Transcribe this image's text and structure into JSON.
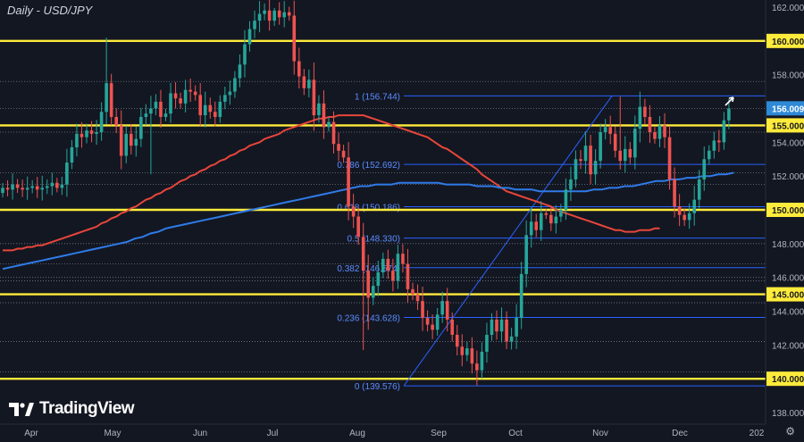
{
  "chart_data": {
    "type": "candlestick",
    "title": "Daily - USD/JPY",
    "brand": "TradingView",
    "ylim": [
      137.3,
      162.6
    ],
    "y_ticks": [
      138,
      140,
      142,
      144,
      146,
      148,
      150,
      152,
      154,
      156,
      158,
      160,
      162
    ],
    "x_ticks": [
      "Apr",
      "May",
      "Jun",
      "Jul",
      "Aug",
      "Sep",
      "Oct",
      "Nov",
      "Dec",
      "202"
    ],
    "current_price": "156.009",
    "colors": {
      "background": "#131722",
      "up": "#26a69a",
      "down": "#ef5350",
      "sr_line": "#ffeb3b",
      "ma_fast": "#e8463a",
      "ma_slow": "#2f7be8",
      "fib": "#2962ff",
      "current_price": "#2e89d6"
    },
    "support_resistance": [
      {
        "value": 160.0,
        "label": "160.000"
      },
      {
        "value": 155.0,
        "label": "155.000"
      },
      {
        "value": 150.0,
        "label": "150.000"
      },
      {
        "value": 145.0,
        "label": "145.000"
      },
      {
        "value": 140.0,
        "label": "140.000"
      }
    ],
    "dotted_levels": [
      157.6,
      156.0,
      154.6,
      152.2,
      151.5,
      148.0,
      146.8,
      146.0,
      145.8,
      144.5,
      142.2,
      140.4
    ],
    "fibonacci": [
      {
        "ratio": "1",
        "price": "156.744",
        "value": 156.744
      },
      {
        "ratio": "0.786",
        "price": "152.692",
        "value": 152.692
      },
      {
        "ratio": "0.618",
        "price": "150.186",
        "value": 150.186
      },
      {
        "ratio": "0.5",
        "price": "148.330",
        "value": 148.33
      },
      {
        "ratio": "0.382",
        "price": "146.574",
        "value": 146.574
      },
      {
        "ratio": "0.236",
        "price": "143.628",
        "value": 143.628
      },
      {
        "ratio": "0",
        "price": "139.576",
        "value": 139.576
      }
    ],
    "series": [
      {
        "kind": "ohlc",
        "x_start": 0,
        "x_step": 1,
        "closes": [
          151.3,
          151.2,
          151.5,
          151.3,
          151.2,
          151.3,
          151.4,
          151.2,
          151.3,
          151.4,
          151.6,
          151.3,
          151.5,
          152.8,
          153.7,
          154.5,
          154.3,
          154.7,
          154.5,
          154.6,
          155.8,
          157.5,
          155.5,
          155.0,
          153.2,
          154.5,
          153.8,
          154.2,
          155.5,
          155.7,
          156.0,
          156.4,
          155.5,
          155.7,
          156.9,
          156.6,
          156.3,
          157.1,
          157.0,
          156.8,
          155.6,
          156.2,
          155.8,
          155.5,
          156.4,
          156.8,
          157.0,
          157.8,
          158.6,
          159.8,
          160.7,
          161.2,
          161.6,
          161.8,
          161.2,
          161.8,
          161.4,
          161.7,
          161.5,
          158.8,
          157.9,
          157.2,
          157.7,
          155.6,
          156.3,
          154.9,
          155.2,
          153.9,
          153.5,
          153.1,
          150.2,
          149.6,
          148.4,
          146.4,
          144.8,
          145.5,
          146.3,
          147.1,
          146.4,
          145.8,
          147.4,
          146.8,
          145.3,
          145.0,
          144.6,
          143.6,
          143.2,
          142.9,
          143.8,
          144.6,
          143.5,
          142.6,
          141.9,
          141.4,
          141.8,
          140.9,
          140.5,
          141.6,
          142.6,
          143.5,
          142.8,
          143.5,
          142.2,
          142.5,
          143.6,
          146.2,
          148.5,
          149.3,
          148.8,
          149.8,
          149.7,
          149.2,
          149.6,
          150.0,
          151.2,
          151.8,
          153.0,
          152.9,
          153.8,
          152.1,
          152.9,
          154.6,
          154.9,
          154.5,
          153.5,
          152.9,
          153.6,
          153.1,
          154.8,
          156.1,
          155.5,
          154.6,
          154.2,
          155.0,
          154.3,
          151.8,
          150.2,
          149.7,
          149.4,
          149.8,
          150.6,
          151.8,
          153.0,
          153.5,
          154.1,
          154.0,
          155.3,
          156.0
        ]
      }
    ],
    "ma_fast_values": [
      147.6,
      147.6,
      147.6,
      147.7,
      147.7,
      147.8,
      147.8,
      147.9,
      147.9,
      148.0,
      148.1,
      148.2,
      148.3,
      148.4,
      148.5,
      148.6,
      148.7,
      148.8,
      148.9,
      149.0,
      149.2,
      149.3,
      149.5,
      149.6,
      149.8,
      149.9,
      150.1,
      150.2,
      150.4,
      150.6,
      150.7,
      150.9,
      151.0,
      151.2,
      151.3,
      151.5,
      151.7,
      151.8,
      152.0,
      152.1,
      152.3,
      152.4,
      152.6,
      152.7,
      152.9,
      153.0,
      153.2,
      153.3,
      153.5,
      153.6,
      153.8,
      153.9,
      154.0,
      154.2,
      154.3,
      154.4,
      154.5,
      154.7,
      154.8,
      154.9,
      155.0,
      155.1,
      155.2,
      155.3,
      155.4,
      155.4,
      155.5,
      155.5,
      155.6,
      155.6,
      155.6,
      155.6,
      155.6,
      155.6,
      155.5,
      155.4,
      155.3,
      155.2,
      155.1,
      155.0,
      154.9,
      154.8,
      154.7,
      154.6,
      154.5,
      154.4,
      154.3,
      154.1,
      153.9,
      153.7,
      153.6,
      153.4,
      153.2,
      153.0,
      152.8,
      152.6,
      152.4,
      152.1,
      151.9,
      151.7,
      151.5,
      151.3,
      151.1,
      151.0,
      150.9,
      150.8,
      150.7,
      150.6,
      150.5,
      150.4,
      150.3,
      150.2,
      150.0,
      149.9,
      149.8,
      149.7,
      149.6,
      149.5,
      149.4,
      149.3,
      149.2,
      149.1,
      149.0,
      148.9,
      148.8,
      148.8,
      148.7,
      148.7,
      148.7,
      148.8,
      148.8,
      148.8,
      148.9,
      148.9
    ],
    "ma_slow_values": [
      146.5,
      146.6,
      146.7,
      146.8,
      146.9,
      147.0,
      147.1,
      147.2,
      147.3,
      147.4,
      147.5,
      147.6,
      147.7,
      147.8,
      147.9,
      148.0,
      148.1,
      148.3,
      148.4,
      148.6,
      148.7,
      148.9,
      149.0,
      149.1,
      149.2,
      149.3,
      149.4,
      149.5,
      149.6,
      149.7,
      149.8,
      149.9,
      150.0,
      150.1,
      150.2,
      150.3,
      150.4,
      150.5,
      150.6,
      150.7,
      150.8,
      150.9,
      151.0,
      151.1,
      151.2,
      151.3,
      151.4,
      151.4,
      151.5,
      151.5,
      151.5,
      151.6,
      151.6,
      151.6,
      151.6,
      151.6,
      151.6,
      151.5,
      151.5,
      151.5,
      151.5,
      151.4,
      151.4,
      151.4,
      151.3,
      151.3,
      151.2,
      151.2,
      151.2,
      151.1,
      151.1,
      151.1,
      151.1,
      151.1,
      151.1,
      151.1,
      151.2,
      151.2,
      151.3,
      151.3,
      151.4,
      151.4,
      151.5,
      151.6,
      151.7,
      151.7,
      151.8,
      151.8,
      151.9,
      151.9,
      152.0,
      152.0,
      152.1,
      152.1,
      152.2
    ]
  }
}
